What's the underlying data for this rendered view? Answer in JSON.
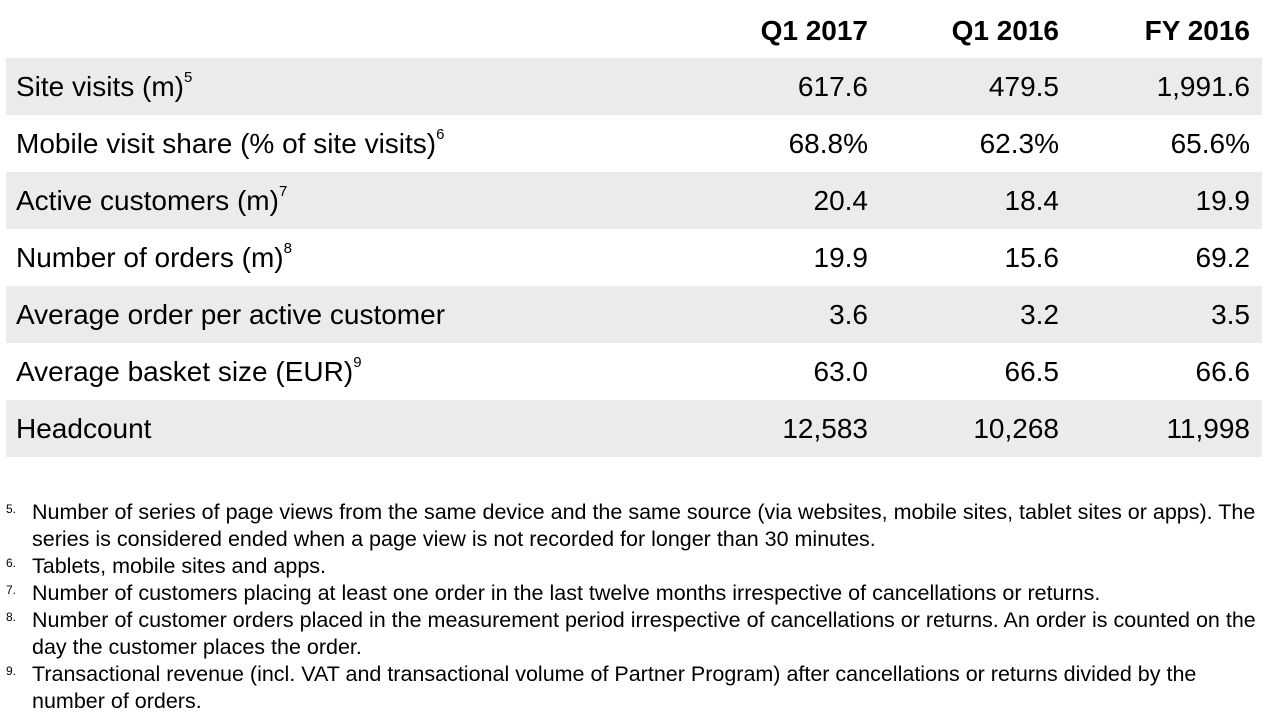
{
  "table": {
    "columns": [
      "Q1 2017",
      "Q1 2016",
      "FY 2016"
    ],
    "rows": [
      {
        "label": "Site visits (m)",
        "ref": "5",
        "values": [
          "617.6",
          "479.5",
          "1,991.6"
        ]
      },
      {
        "label": "Mobile visit share (% of site visits)",
        "ref": "6",
        "values": [
          "68.8%",
          "62.3%",
          "65.6%"
        ]
      },
      {
        "label": "Active customers (m)",
        "ref": "7",
        "values": [
          "20.4",
          "18.4",
          "19.9"
        ]
      },
      {
        "label": "Number of orders (m)",
        "ref": "8",
        "values": [
          "19.9",
          "15.6",
          "69.2"
        ]
      },
      {
        "label": "Average order per active customer",
        "ref": "",
        "values": [
          "3.6",
          "3.2",
          "3.5"
        ]
      },
      {
        "label": "Average basket size (EUR)",
        "ref": "9",
        "values": [
          "63.0",
          "66.5",
          "66.6"
        ]
      },
      {
        "label": "Headcount",
        "ref": "",
        "values": [
          "12,583",
          "10,268",
          "11,998"
        ]
      }
    ]
  },
  "footnotes": [
    {
      "num": "5.",
      "text": "Number of series of page views from the same device and the same source (via websites, mobile sites, tablet sites or apps). The series is considered ended when a page view is not recorded for longer than 30 minutes."
    },
    {
      "num": "6.",
      "text": "Tablets, mobile sites and apps."
    },
    {
      "num": "7.",
      "text": "Number of customers placing at least one order in the last twelve months irrespective of cancellations or returns."
    },
    {
      "num": "8.",
      "text": "Number of customer orders placed in the measurement period irrespective of cancellations or returns. An order is counted on the day the customer places the order."
    },
    {
      "num": "9.",
      "text": "Transactional revenue (incl. VAT and transactional volume of Partner Program) after cancellations or returns divided by the number of orders."
    }
  ],
  "colors": {
    "row_shade": "#ebebeb",
    "text": "#000000",
    "background": "#ffffff"
  }
}
